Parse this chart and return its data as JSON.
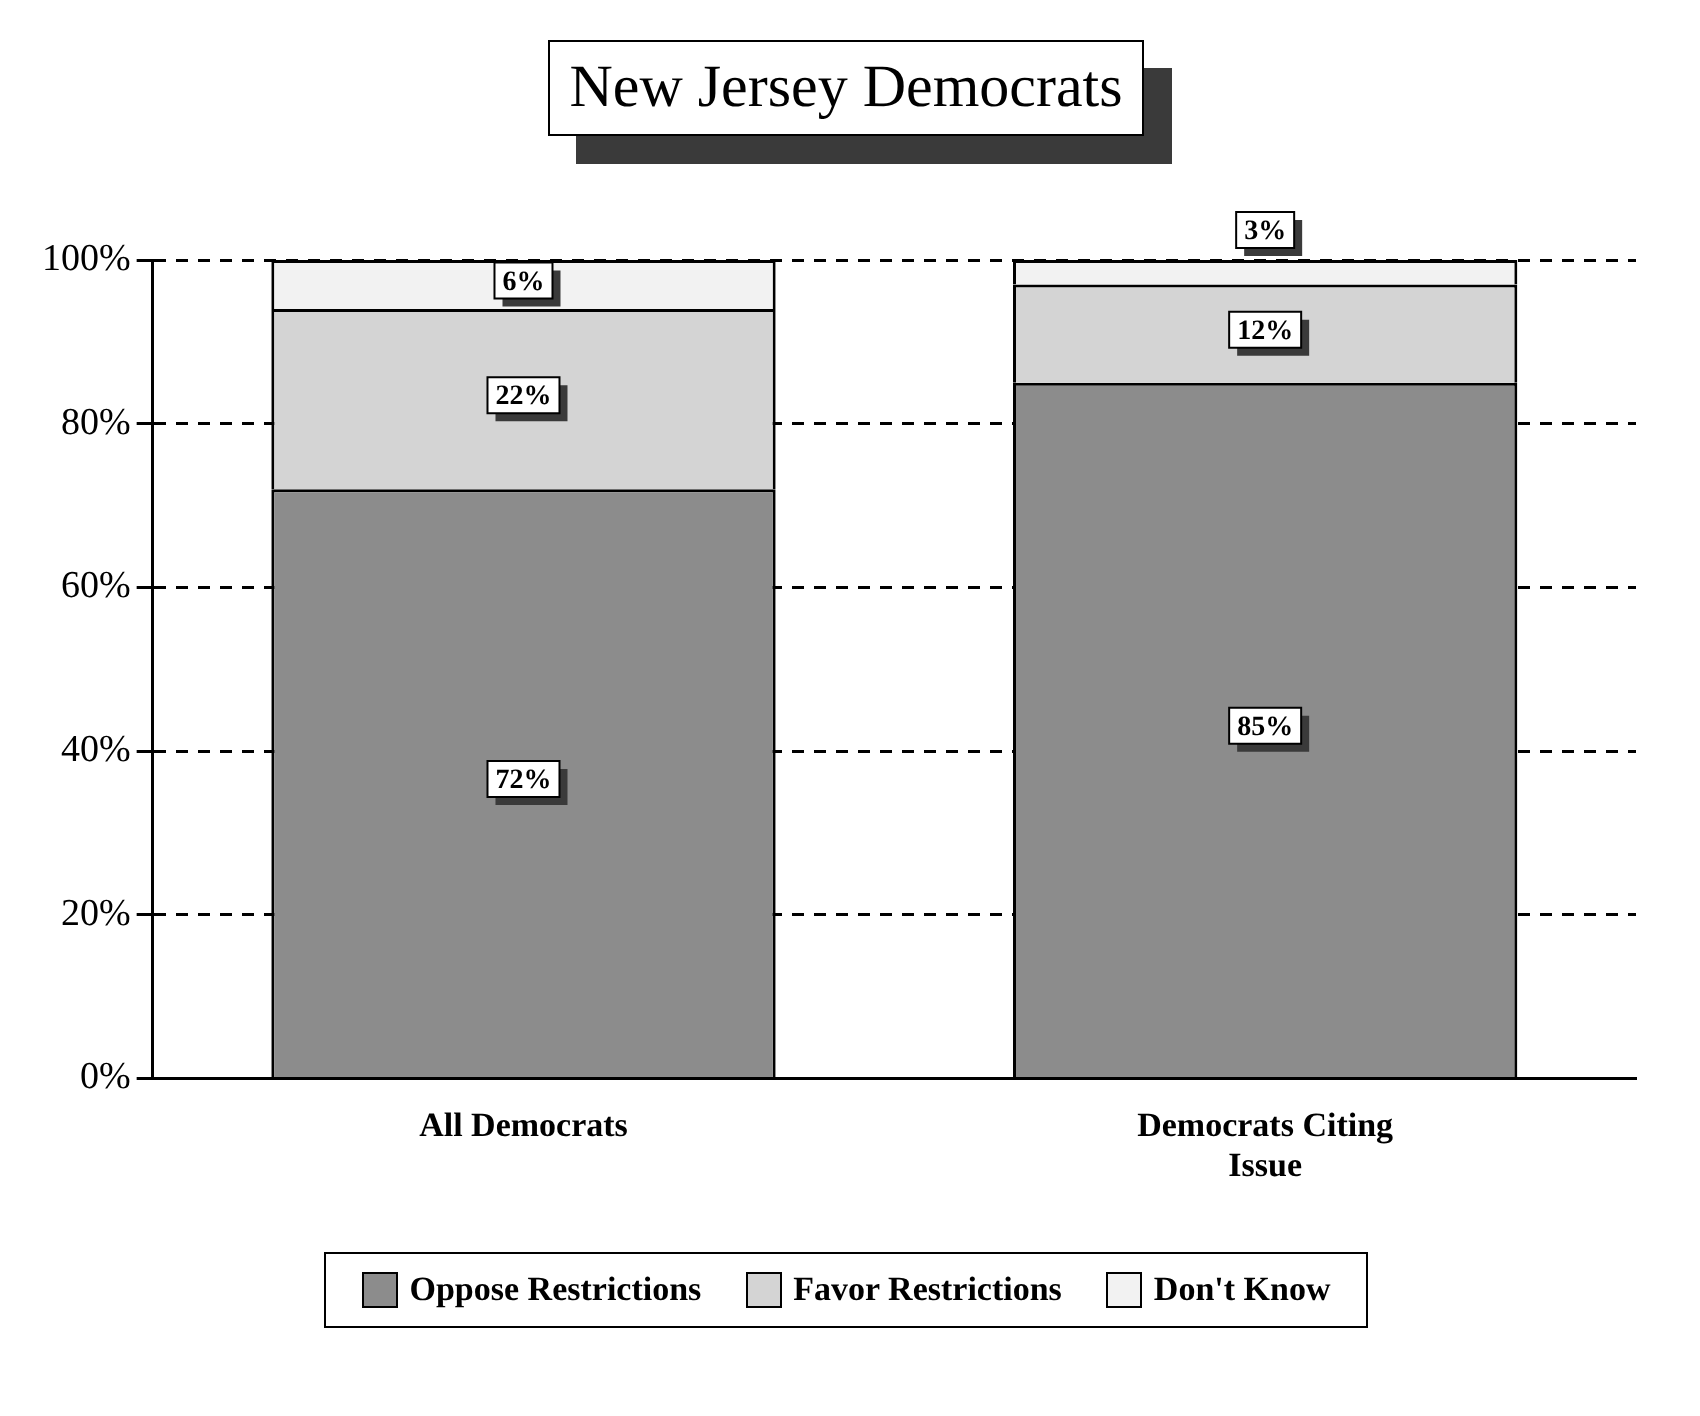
{
  "chart_data": {
    "type": "bar",
    "title": "New Jersey Democrats",
    "categories": [
      "All Democrats",
      "Democrats Citing Issue"
    ],
    "stacked": true,
    "series": [
      {
        "name": "Oppose Restrictions",
        "color": "#8c8c8c",
        "values": [
          72,
          85
        ],
        "value_labels": [
          "72%",
          "85%"
        ]
      },
      {
        "name": "Favor Restrictions",
        "color": "#d4d4d4",
        "values": [
          22,
          12
        ],
        "value_labels": [
          "22%",
          "12%"
        ]
      },
      {
        "name": "Don't Know",
        "color": "#f2f2f2",
        "values": [
          6,
          3
        ],
        "value_labels": [
          "6%",
          "3%"
        ]
      }
    ],
    "ylim": [
      0,
      100
    ],
    "yticks": [
      {
        "value": 0,
        "label": "0%"
      },
      {
        "value": 20,
        "label": "20%"
      },
      {
        "value": 40,
        "label": "40%"
      },
      {
        "value": 60,
        "label": "60%"
      },
      {
        "value": 80,
        "label": "80%"
      },
      {
        "value": 100,
        "label": "100%"
      }
    ],
    "grid": "y",
    "legend": "bottom"
  }
}
